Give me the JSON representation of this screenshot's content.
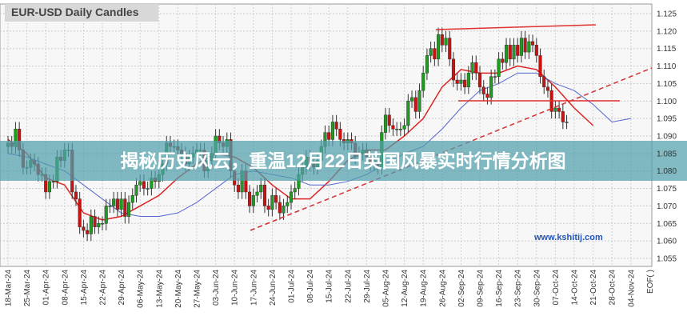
{
  "chart_data": {
    "type": "candlestick",
    "title": "EUR-USD Daily Candles",
    "week_labels": [
      "18-Mar-24",
      "25-Mar-24",
      "01-Apr-24",
      "08-Apr-24",
      "15-Apr-24",
      "22-Apr-24",
      "29-Apr-24",
      "06-May-24",
      "13-May-24",
      "20-May-24",
      "27-May-24",
      "03-Jun-24",
      "10-Jun-24",
      "17-Jun-24",
      "24-Jun-24",
      "01-Jul-24",
      "08-Jul-24",
      "15-Jul-24",
      "22-Jul-24",
      "29-Jul-24",
      "05-Aug-24",
      "12-Aug-24",
      "19-Aug-24",
      "26-Aug-24",
      "02-Sep-24",
      "09-Sep-24",
      "16-Sep-24",
      "23-Sep-24",
      "30-Sep-24",
      "07-Oct-24",
      "14-Oct-24",
      "21-Oct-24",
      "28-Oct-24",
      "04-Nov-24",
      "EOF( )"
    ],
    "open": [
      1.087,
      1.088,
      1.087,
      1.092,
      1.086,
      1.081,
      1.081,
      1.083,
      1.082,
      1.079,
      1.079,
      1.074,
      1.077,
      1.077,
      1.084,
      1.083,
      1.086,
      1.086,
      1.074,
      1.072,
      1.064,
      1.063,
      1.062,
      1.067,
      1.064,
      1.065,
      1.065,
      1.07,
      1.07,
      1.072,
      1.069,
      1.072,
      1.067,
      1.071,
      1.073,
      1.076,
      1.077,
      1.075,
      1.075,
      1.078,
      1.077,
      1.079,
      1.082,
      1.088,
      1.087,
      1.087,
      1.086,
      1.085,
      1.082,
      1.084,
      1.085,
      1.086,
      1.086,
      1.08,
      1.083,
      1.085,
      1.09,
      1.088,
      1.087,
      1.089,
      1.08,
      1.076,
      1.074,
      1.08,
      1.074,
      1.07,
      1.073,
      1.074,
      1.076,
      1.07,
      1.069,
      1.073,
      1.071,
      1.068,
      1.07,
      1.071,
      1.074,
      1.075,
      1.079,
      1.081,
      1.084,
      1.082,
      1.081,
      1.083,
      1.087,
      1.091,
      1.089,
      1.094,
      1.092,
      1.089,
      1.088,
      1.089,
      1.088,
      1.084,
      1.085,
      1.086,
      1.084,
      1.082,
      1.083,
      1.081,
      1.091,
      1.096,
      1.093,
      1.092,
      1.092,
      1.092,
      1.093,
      1.1,
      1.101,
      1.097,
      1.103,
      1.108,
      1.113,
      1.115,
      1.112,
      1.119,
      1.116,
      1.118,
      1.112,
      1.106,
      1.105,
      1.106,
      1.104,
      1.108,
      1.111,
      1.108,
      1.104,
      1.102,
      1.101,
      1.107,
      1.107,
      1.112,
      1.111,
      1.116,
      1.112,
      1.116,
      1.113,
      1.118,
      1.114,
      1.117,
      1.116,
      1.113,
      1.107,
      1.104,
      1.103,
      1.097,
      1.098,
      1.097,
      1.094
    ],
    "high": [
      1.09,
      1.09,
      1.094,
      1.094,
      1.088,
      1.083,
      1.085,
      1.085,
      1.084,
      1.081,
      1.081,
      1.079,
      1.079,
      1.086,
      1.086,
      1.088,
      1.088,
      1.088,
      1.076,
      1.074,
      1.066,
      1.065,
      1.069,
      1.069,
      1.067,
      1.067,
      1.072,
      1.072,
      1.074,
      1.074,
      1.074,
      1.074,
      1.073,
      1.075,
      1.078,
      1.079,
      1.079,
      1.077,
      1.08,
      1.08,
      1.081,
      1.084,
      1.09,
      1.09,
      1.089,
      1.089,
      1.088,
      1.087,
      1.086,
      1.087,
      1.088,
      1.088,
      1.088,
      1.085,
      1.087,
      1.092,
      1.092,
      1.09,
      1.091,
      1.091,
      1.082,
      1.078,
      1.082,
      1.082,
      1.076,
      1.075,
      1.076,
      1.078,
      1.078,
      1.072,
      1.075,
      1.075,
      1.073,
      1.072,
      1.073,
      1.076,
      1.077,
      1.081,
      1.083,
      1.086,
      1.086,
      1.084,
      1.085,
      1.089,
      1.093,
      1.093,
      1.096,
      1.096,
      1.094,
      1.091,
      1.091,
      1.091,
      1.09,
      1.087,
      1.088,
      1.088,
      1.086,
      1.085,
      1.085,
      1.093,
      1.098,
      1.098,
      1.095,
      1.094,
      1.094,
      1.095,
      1.102,
      1.103,
      1.103,
      1.105,
      1.11,
      1.115,
      1.117,
      1.117,
      1.121,
      1.121,
      1.12,
      1.12,
      1.114,
      1.108,
      1.108,
      1.108,
      1.11,
      1.113,
      1.113,
      1.11,
      1.106,
      1.104,
      1.109,
      1.109,
      1.114,
      1.114,
      1.118,
      1.118,
      1.118,
      1.118,
      1.12,
      1.12,
      1.119,
      1.119,
      1.118,
      1.115,
      1.109,
      1.106,
      1.105,
      1.1,
      1.1,
      1.099,
      1.096
    ],
    "low": [
      1.085,
      1.085,
      1.085,
      1.084,
      1.079,
      1.079,
      1.079,
      1.08,
      1.077,
      1.077,
      1.072,
      1.072,
      1.075,
      1.075,
      1.081,
      1.081,
      1.084,
      1.072,
      1.07,
      1.062,
      1.061,
      1.06,
      1.06,
      1.062,
      1.062,
      1.063,
      1.063,
      1.068,
      1.068,
      1.067,
      1.067,
      1.065,
      1.065,
      1.069,
      1.071,
      1.074,
      1.073,
      1.073,
      1.073,
      1.075,
      1.075,
      1.077,
      1.08,
      1.085,
      1.085,
      1.084,
      1.083,
      1.08,
      1.08,
      1.082,
      1.083,
      1.084,
      1.078,
      1.078,
      1.081,
      1.083,
      1.086,
      1.085,
      1.085,
      1.078,
      1.074,
      1.072,
      1.072,
      1.072,
      1.068,
      1.068,
      1.071,
      1.072,
      1.068,
      1.067,
      1.067,
      1.069,
      1.066,
      1.066,
      1.068,
      1.069,
      1.072,
      1.073,
      1.077,
      1.079,
      1.08,
      1.079,
      1.079,
      1.081,
      1.085,
      1.087,
      1.087,
      1.09,
      1.087,
      1.086,
      1.086,
      1.086,
      1.082,
      1.082,
      1.083,
      1.082,
      1.08,
      1.08,
      1.079,
      1.079,
      1.089,
      1.091,
      1.09,
      1.09,
      1.09,
      1.09,
      1.091,
      1.098,
      1.095,
      1.095,
      1.101,
      1.106,
      1.111,
      1.11,
      1.11,
      1.114,
      1.114,
      1.11,
      1.104,
      1.103,
      1.103,
      1.102,
      1.102,
      1.106,
      1.106,
      1.102,
      1.1,
      1.099,
      1.099,
      1.105,
      1.105,
      1.109,
      1.109,
      1.11,
      1.11,
      1.111,
      1.111,
      1.112,
      1.112,
      1.114,
      1.111,
      1.105,
      1.102,
      1.101,
      1.095,
      1.095,
      1.095,
      1.092,
      1.092
    ],
    "close": [
      1.088,
      1.087,
      1.092,
      1.086,
      1.081,
      1.081,
      1.083,
      1.082,
      1.079,
      1.079,
      1.074,
      1.077,
      1.077,
      1.084,
      1.083,
      1.086,
      1.086,
      1.074,
      1.072,
      1.064,
      1.063,
      1.062,
      1.067,
      1.064,
      1.065,
      1.065,
      1.07,
      1.07,
      1.072,
      1.069,
      1.072,
      1.067,
      1.071,
      1.073,
      1.076,
      1.077,
      1.075,
      1.075,
      1.078,
      1.077,
      1.079,
      1.082,
      1.088,
      1.087,
      1.087,
      1.086,
      1.085,
      1.082,
      1.084,
      1.085,
      1.086,
      1.086,
      1.08,
      1.083,
      1.085,
      1.09,
      1.088,
      1.087,
      1.089,
      1.08,
      1.076,
      1.074,
      1.08,
      1.074,
      1.07,
      1.073,
      1.074,
      1.076,
      1.07,
      1.069,
      1.073,
      1.071,
      1.068,
      1.07,
      1.071,
      1.074,
      1.075,
      1.079,
      1.081,
      1.084,
      1.082,
      1.081,
      1.083,
      1.087,
      1.091,
      1.089,
      1.094,
      1.092,
      1.089,
      1.088,
      1.089,
      1.088,
      1.084,
      1.085,
      1.086,
      1.084,
      1.082,
      1.083,
      1.081,
      1.091,
      1.096,
      1.093,
      1.092,
      1.092,
      1.092,
      1.093,
      1.1,
      1.101,
      1.097,
      1.103,
      1.108,
      1.113,
      1.115,
      1.112,
      1.119,
      1.116,
      1.118,
      1.112,
      1.106,
      1.105,
      1.106,
      1.104,
      1.108,
      1.111,
      1.108,
      1.104,
      1.102,
      1.101,
      1.107,
      1.107,
      1.112,
      1.111,
      1.116,
      1.112,
      1.116,
      1.113,
      1.118,
      1.114,
      1.117,
      1.116,
      1.113,
      1.107,
      1.104,
      1.103,
      1.097,
      1.098,
      1.097,
      1.094,
      1.094
    ],
    "up_color": "#1e9e1e",
    "down_color": "#cc1111",
    "series": [
      {
        "color": "#dd2222",
        "values": [
          1.089,
          1.085,
          1.078,
          1.076,
          1.068,
          1.066,
          1.067,
          1.07,
          1.073,
          1.078,
          1.082,
          1.085,
          1.084,
          1.081,
          1.076,
          1.072,
          1.072,
          1.077,
          1.083,
          1.086,
          1.086,
          1.09,
          1.095,
          1.104,
          1.109,
          1.108,
          1.108,
          1.11,
          1.109,
          1.104,
          1.098,
          1.093,
          null,
          null
        ]
      },
      {
        "color": "#5566cc",
        "values": [
          1.085,
          1.084,
          1.082,
          1.08,
          1.076,
          1.072,
          1.068,
          1.067,
          1.067,
          1.068,
          1.071,
          1.075,
          1.079,
          1.08,
          1.079,
          1.078,
          1.076,
          1.076,
          1.077,
          1.079,
          1.082,
          1.085,
          1.087,
          1.092,
          1.098,
          1.103,
          1.105,
          1.108,
          1.108,
          1.105,
          1.103,
          1.099,
          1.094,
          1.095
        ]
      }
    ],
    "ylim": [
      1.055,
      1.125
    ],
    "yticks": [
      1.055,
      {
        "value": 1.06,
        "label": "1.060"
      },
      1.065,
      {
        "value": 1.07,
        "label": "1.070"
      },
      1.075,
      {
        "value": 1.08,
        "label": "1.080"
      },
      1.085,
      {
        "value": 1.09,
        "label": "1.090"
      },
      1.095,
      {
        "value": 1.1,
        "label": "1.100"
      },
      1.105,
      {
        "value": 1.11,
        "label": "1.110"
      },
      1.115,
      {
        "value": 1.12,
        "label": "1.120"
      },
      1.125
    ],
    "grid": true
  },
  "watermark": "www.kshitij.com",
  "banner": "揭秘历史风云，重温12月22日英国风暴实时行情分析图"
}
